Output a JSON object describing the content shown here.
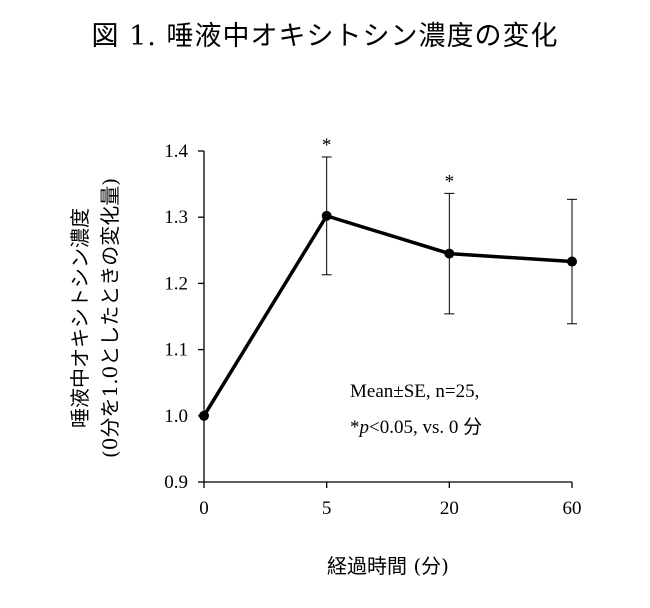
{
  "title": "図 1.  唾液中オキシトシン濃度の変化",
  "chart_data": {
    "type": "line",
    "title": "図 1.  唾液中オキシトシン濃度の変化",
    "xlabel": "経過時間 (分)",
    "ylabel_lines": [
      "唾液中オキシトシン濃度",
      "(0分を1.0としたときの変化量)"
    ],
    "categories": [
      "0",
      "5",
      "20",
      "60"
    ],
    "series": [
      {
        "values": [
          1.0,
          1.302,
          1.245,
          1.233
        ],
        "error": [
          0,
          0.089,
          0.091,
          0.094
        ],
        "significant": [
          false,
          true,
          true,
          false
        ]
      }
    ],
    "ylim": [
      0.9,
      1.4
    ],
    "yticks": [
      "0.9",
      "1.0",
      "1.1",
      "1.2",
      "1.3",
      "1.4"
    ],
    "significance_marker": "*",
    "annotation": {
      "line1": "Mean±SE, n=25,",
      "line2_star": "*",
      "line2_p": "p",
      "line2_rest": "<0.05, vs. 0 分"
    },
    "grid": false,
    "legend": "none"
  }
}
